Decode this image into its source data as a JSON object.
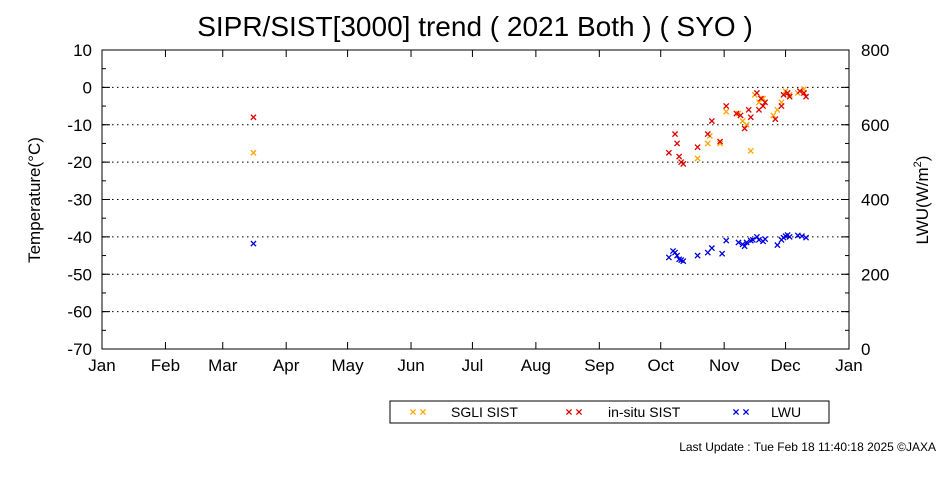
{
  "chart_data": {
    "type": "scatter",
    "title": "SIPR/SIST[3000] trend ( 2021 Both ) ( SYO )",
    "ylabel": "Temperature(°C)",
    "y2label_main": "LWU(W/m",
    "y2label_sup": "2",
    "y2label_end": ")",
    "ylim": [
      -70,
      10
    ],
    "y2lim": [
      0,
      800
    ],
    "yticks": [
      "10",
      "0",
      "-10",
      "-20",
      "-30",
      "-40",
      "-50",
      "-60",
      "-70"
    ],
    "y2ticks": [
      "800",
      "600",
      "400",
      "200",
      "0"
    ],
    "months": [
      "Jan",
      "Feb",
      "Mar",
      "Apr",
      "May",
      "Jun",
      "Jul",
      "Aug",
      "Sep",
      "Oct",
      "Nov",
      "Dec",
      "Jan"
    ],
    "grid": "dotted horizontal",
    "legend_position": "bottom",
    "series": [
      {
        "name": "SGLI SIST",
        "color": "#FFA500",
        "axis": "left",
        "points": [
          [
            "2021-03-16",
            -17.5
          ],
          [
            "2021-10-19",
            -19
          ],
          [
            "2021-10-24",
            -15
          ],
          [
            "2021-10-25",
            -13
          ],
          [
            "2021-10-30",
            -15
          ],
          [
            "2021-11-02",
            -6.5
          ],
          [
            "2021-11-08",
            -7
          ],
          [
            "2021-11-10",
            -9
          ],
          [
            "2021-11-12",
            -10
          ],
          [
            "2021-11-14",
            -17
          ],
          [
            "2021-11-16",
            -2
          ],
          [
            "2021-11-18",
            -4
          ],
          [
            "2021-11-20",
            -3
          ],
          [
            "2021-11-25",
            -7.5
          ],
          [
            "2021-11-27",
            -6
          ],
          [
            "2021-11-29",
            -4
          ],
          [
            "2021-12-01",
            -1
          ],
          [
            "2021-12-03",
            -2
          ],
          [
            "2021-12-07",
            -1.5
          ],
          [
            "2021-12-10",
            -0.5
          ]
        ]
      },
      {
        "name": "in-situ SIST",
        "color": "#E00000",
        "axis": "left",
        "points": [
          [
            "2021-03-16",
            -8
          ],
          [
            "2021-10-05",
            -17.5
          ],
          [
            "2021-10-08",
            -12.5
          ],
          [
            "2021-10-09",
            -15
          ],
          [
            "2021-10-10",
            -18.5
          ],
          [
            "2021-10-11",
            -20
          ],
          [
            "2021-10-12",
            -20.5
          ],
          [
            "2021-10-19",
            -16
          ],
          [
            "2021-10-24",
            -12.5
          ],
          [
            "2021-10-26",
            -9
          ],
          [
            "2021-10-30",
            -14.5
          ],
          [
            "2021-11-02",
            -5
          ],
          [
            "2021-11-07",
            -7
          ],
          [
            "2021-11-09",
            -7.5
          ],
          [
            "2021-11-11",
            -11
          ],
          [
            "2021-11-13",
            -6
          ],
          [
            "2021-11-14",
            -8
          ],
          [
            "2021-11-17",
            -1.5
          ],
          [
            "2021-11-18",
            -6
          ],
          [
            "2021-11-19",
            -3
          ],
          [
            "2021-11-20",
            -5
          ],
          [
            "2021-11-21",
            -4
          ],
          [
            "2021-11-26",
            -8.5
          ],
          [
            "2021-11-29",
            -5
          ],
          [
            "2021-11-30",
            -2
          ],
          [
            "2021-12-02",
            -1.5
          ],
          [
            "2021-12-03",
            -2.5
          ],
          [
            "2021-12-08",
            -1
          ],
          [
            "2021-12-10",
            -1.5
          ],
          [
            "2021-12-11",
            -2.5
          ]
        ]
      },
      {
        "name": "LWU",
        "color": "#0000E0",
        "axis": "right",
        "points": [
          [
            "2021-03-16",
            282
          ],
          [
            "2021-10-05",
            245
          ],
          [
            "2021-10-07",
            262
          ],
          [
            "2021-10-08",
            258
          ],
          [
            "2021-10-09",
            250
          ],
          [
            "2021-10-10",
            240
          ],
          [
            "2021-10-11",
            238
          ],
          [
            "2021-10-12",
            235
          ],
          [
            "2021-10-19",
            250
          ],
          [
            "2021-10-24",
            258
          ],
          [
            "2021-10-26",
            270
          ],
          [
            "2021-10-31",
            255
          ],
          [
            "2021-11-02",
            290
          ],
          [
            "2021-11-08",
            285
          ],
          [
            "2021-11-10",
            280
          ],
          [
            "2021-11-11",
            275
          ],
          [
            "2021-11-12",
            285
          ],
          [
            "2021-11-14",
            290
          ],
          [
            "2021-11-15",
            292
          ],
          [
            "2021-11-17",
            300
          ],
          [
            "2021-11-18",
            292
          ],
          [
            "2021-11-20",
            288
          ],
          [
            "2021-11-21",
            294
          ],
          [
            "2021-11-27",
            278
          ],
          [
            "2021-11-29",
            292
          ],
          [
            "2021-11-30",
            298
          ],
          [
            "2021-12-01",
            302
          ],
          [
            "2021-12-02",
            305
          ],
          [
            "2021-12-03",
            300
          ],
          [
            "2021-12-07",
            304
          ],
          [
            "2021-12-09",
            302
          ],
          [
            "2021-12-11",
            298
          ]
        ]
      }
    ]
  },
  "footer": {
    "text": "Last Update : Tue Feb 18 11:40:18 2025  ©JAXA"
  }
}
